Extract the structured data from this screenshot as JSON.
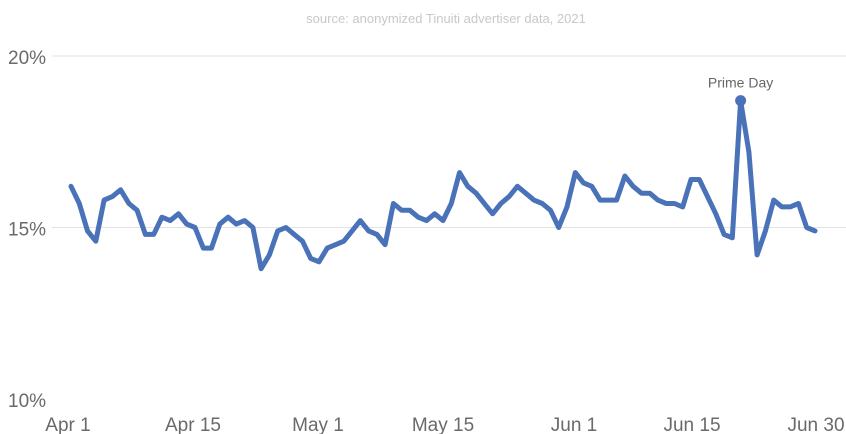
{
  "chart_data": {
    "type": "line",
    "subtitle": "source: anonymized Tinuiti advertiser data, 2021",
    "title": "",
    "xlabel": "",
    "ylabel": "",
    "x_ticks": [
      "Apr 1",
      "Apr 15",
      "May 1",
      "May 15",
      "Jun 1",
      "Jun 15",
      "Jun 30"
    ],
    "y_ticks": [
      "10%",
      "15%",
      "20%"
    ],
    "ylim": [
      10,
      20
    ],
    "grid": true,
    "series": [
      {
        "color": "#4a72b8",
        "values": [
          16.2,
          15.7,
          14.9,
          14.6,
          15.8,
          15.9,
          16.1,
          15.7,
          15.5,
          14.8,
          14.8,
          15.3,
          15.2,
          15.4,
          15.1,
          15.0,
          14.4,
          14.4,
          15.1,
          15.3,
          15.1,
          15.2,
          15.0,
          13.8,
          14.2,
          14.9,
          15.0,
          14.8,
          14.6,
          14.1,
          14.0,
          14.4,
          14.5,
          14.6,
          14.9,
          15.2,
          14.9,
          14.8,
          14.5,
          15.7,
          15.5,
          15.5,
          15.3,
          15.2,
          15.4,
          15.2,
          15.7,
          16.6,
          16.2,
          16.0,
          15.7,
          15.4,
          15.7,
          15.9,
          16.2,
          16.0,
          15.8,
          15.7,
          15.5,
          15.0,
          15.6,
          16.6,
          16.3,
          16.2,
          15.8,
          15.8,
          15.8,
          16.5,
          16.2,
          16.0,
          16.0,
          15.8,
          15.7,
          15.7,
          15.6,
          16.4,
          16.4,
          15.9,
          15.4,
          14.8,
          14.7,
          18.7,
          17.2,
          14.2,
          14.9,
          15.8,
          15.6,
          15.6,
          15.7,
          15.0,
          14.9
        ]
      }
    ],
    "annotations": [
      {
        "text": "Prime Day",
        "index": 81
      }
    ]
  }
}
